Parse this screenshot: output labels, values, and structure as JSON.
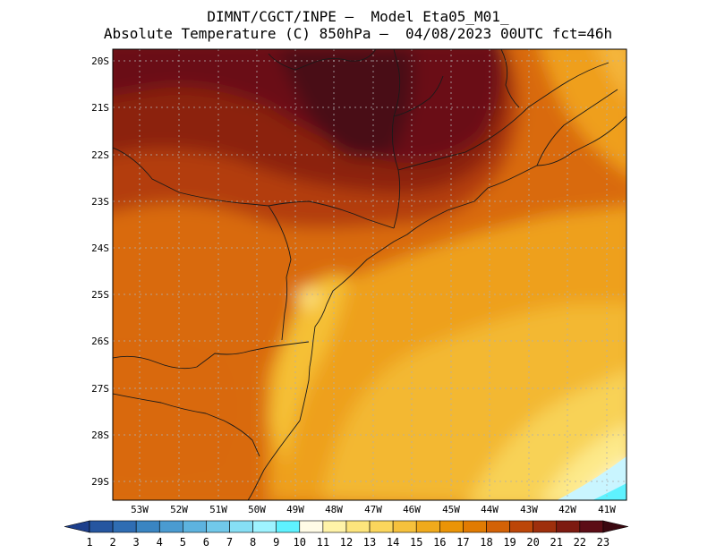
{
  "title": {
    "line1": "DIMNT/CGCT/INPE –  Model Eta05_M01_",
    "line2": "Absolute Temperature (C) 850hPa –  04/08/2023 00UTC fct=46h"
  },
  "map": {
    "lat_labels": [
      "20S",
      "21S",
      "22S",
      "23S",
      "24S",
      "25S",
      "26S",
      "27S",
      "28S",
      "29S"
    ],
    "lon_labels": [
      "53W",
      "52W",
      "51W",
      "50W",
      "49W",
      "48W",
      "47W",
      "46W",
      "45W",
      "44W",
      "43W",
      "42W",
      "41W"
    ],
    "icons": [
      "coastline-icon"
    ]
  },
  "colorbar": {
    "labels": [
      "1",
      "2",
      "3",
      "4",
      "5",
      "6",
      "7",
      "8",
      "9",
      "10",
      "11",
      "12",
      "13",
      "14",
      "15",
      "16",
      "17",
      "18",
      "19",
      "20",
      "21",
      "22",
      "23"
    ],
    "colors": [
      "#1d3f8c",
      "#2656a0",
      "#2f6db3",
      "#3a85c2",
      "#4a9bd1",
      "#5db3df",
      "#71c9ea",
      "#86dff5",
      "#9ef3ff",
      "#5ef2ff",
      "#fffbe6",
      "#fff3a8",
      "#fde57c",
      "#fbd65c",
      "#f6c13c",
      "#f0aa1c",
      "#ea9406",
      "#e17b02",
      "#d36206",
      "#bc4608",
      "#9e2f0c",
      "#7d1a10",
      "#5c0d16",
      "#3a0810"
    ]
  }
}
